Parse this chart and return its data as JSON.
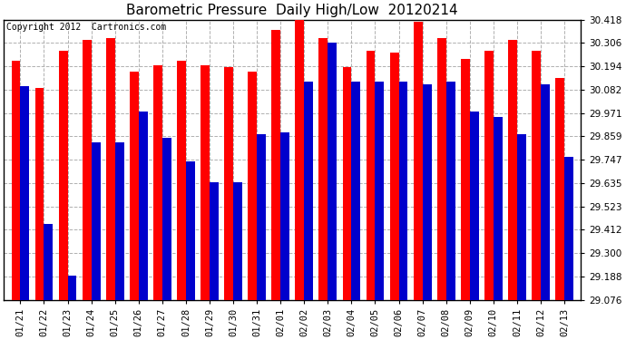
{
  "title": "Barometric Pressure  Daily High/Low  20120214",
  "copyright": "Copyright 2012  Cartronics.com",
  "dates": [
    "01/21",
    "01/22",
    "01/23",
    "01/24",
    "01/25",
    "01/26",
    "01/27",
    "01/28",
    "01/29",
    "01/30",
    "01/31",
    "02/01",
    "02/02",
    "02/03",
    "02/04",
    "02/05",
    "02/06",
    "02/07",
    "02/08",
    "02/09",
    "02/10",
    "02/11",
    "02/12",
    "02/13"
  ],
  "high": [
    30.22,
    30.09,
    30.27,
    30.32,
    30.33,
    30.17,
    30.2,
    30.22,
    30.2,
    30.19,
    30.17,
    30.37,
    30.42,
    30.33,
    30.19,
    30.27,
    30.26,
    30.41,
    30.33,
    30.23,
    30.27,
    30.32,
    30.27,
    30.14
  ],
  "low": [
    30.1,
    29.44,
    29.19,
    29.83,
    29.83,
    29.98,
    29.85,
    29.74,
    29.64,
    29.64,
    29.87,
    29.88,
    30.12,
    30.31,
    30.12,
    30.12,
    30.12,
    30.11,
    30.12,
    29.98,
    29.95,
    29.87,
    30.11,
    29.76
  ],
  "ymin": 29.076,
  "ymax": 30.418,
  "yticks": [
    29.076,
    29.188,
    29.3,
    29.412,
    29.523,
    29.635,
    29.747,
    29.859,
    29.971,
    30.082,
    30.194,
    30.306,
    30.418
  ],
  "bar_color_high": "#ff0000",
  "bar_color_low": "#0000cc",
  "background_color": "#ffffff",
  "grid_color": "#b0b0b0",
  "title_fontsize": 11,
  "copyright_fontsize": 7,
  "tick_fontsize": 7.5,
  "bar_width": 0.38
}
